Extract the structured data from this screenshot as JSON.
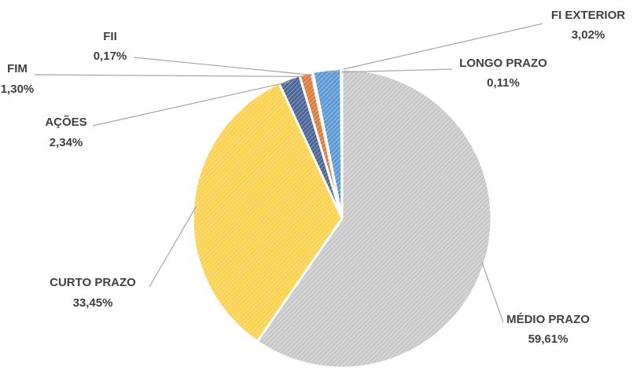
{
  "chart_data": {
    "type": "pie",
    "categories": [
      "MÉDIO PRAZO",
      "CURTO PRAZO",
      "AÇÕES",
      "FIM",
      "FII",
      "FI EXTERIOR",
      "LONGO PRAZO"
    ],
    "values": [
      59.61,
      33.45,
      2.34,
      1.3,
      0.17,
      3.02,
      0.11
    ],
    "value_labels": [
      "59,61%",
      "33,45%",
      "2,34%",
      "1,30%",
      "0,17%",
      "3,02%",
      "0,11%"
    ],
    "colors": [
      "#c9c9c9",
      "#ffd34d",
      "#4a6598",
      "#e07a3a",
      "#9a9a9a",
      "#5b9bd5",
      "#f2c94c"
    ]
  }
}
